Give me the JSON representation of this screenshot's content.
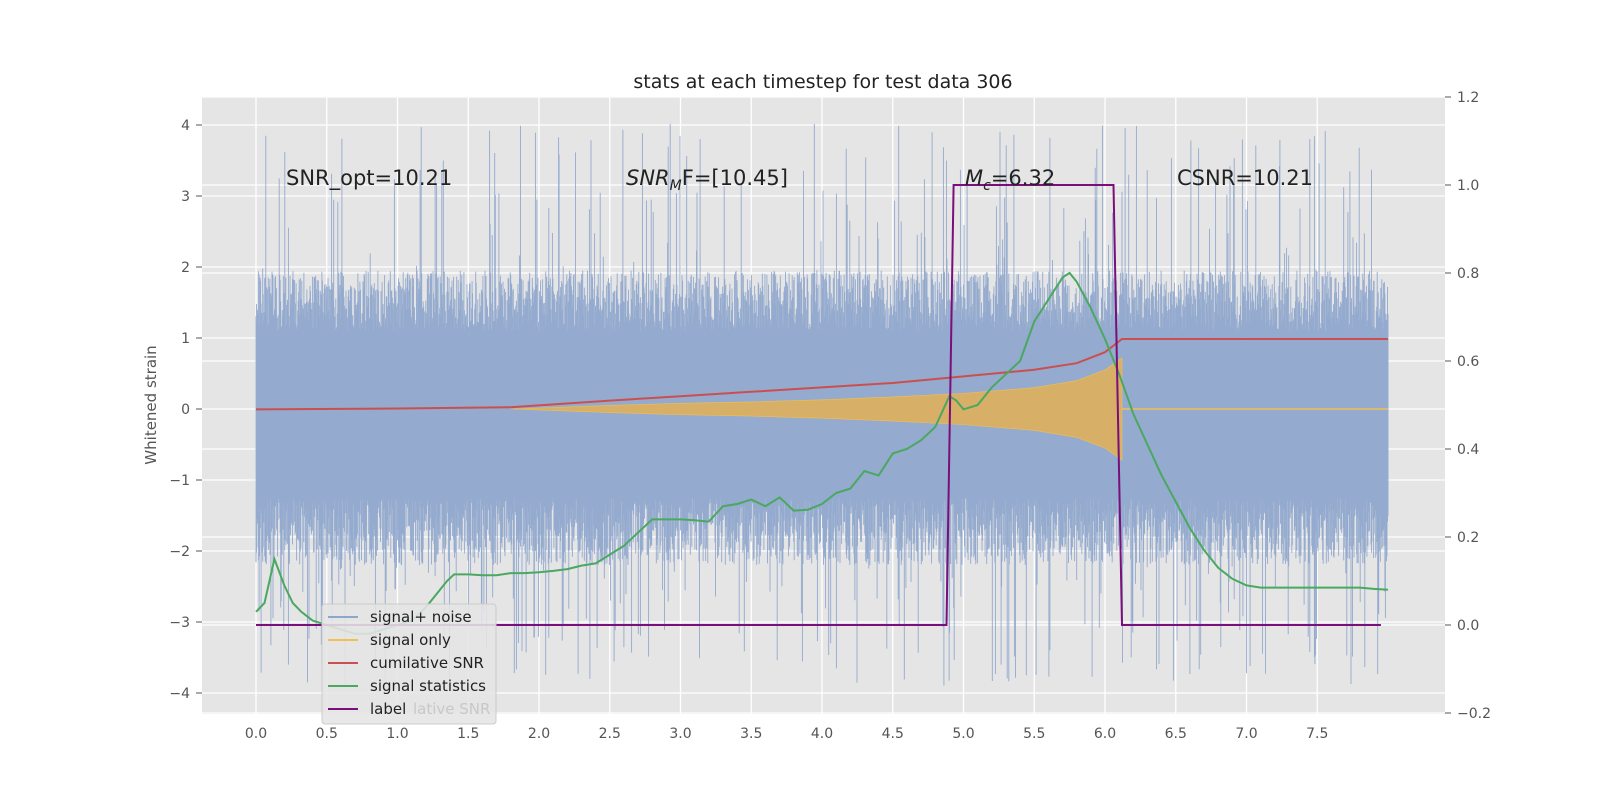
{
  "chart_data": {
    "type": "line",
    "title": "stats at each timestep for test data 306",
    "xlabel": "",
    "ylabel": "Whitened strain",
    "xlim": [
      -0.4,
      8.4
    ],
    "ylim": [
      -4.3,
      4.4
    ],
    "ylim_right": [
      -0.2,
      1.2
    ],
    "xticks": [
      "0.0",
      "0.5",
      "1.0",
      "1.5",
      "2.0",
      "2.5",
      "3.0",
      "3.5",
      "4.0",
      "4.5",
      "5.0",
      "5.5",
      "6.0",
      "6.5",
      "7.0",
      "7.5"
    ],
    "yticks": [
      "4",
      "3",
      "2",
      "1",
      "0",
      "−1",
      "−2",
      "−3",
      "−4"
    ],
    "yticks_right": [
      "1.2",
      "1.0",
      "0.8",
      "0.6",
      "0.4",
      "0.2",
      "0.0",
      "−0.2"
    ],
    "grid": true,
    "legend_position": "lower-left",
    "legend": [
      {
        "label": "signal+ noise",
        "color": "#8fa6cc"
      },
      {
        "label": "signal only",
        "color": "#f0c050"
      },
      {
        "label": "cumilative SNR",
        "color": "#c9504f"
      },
      {
        "label": "signal statistics",
        "color": "#4aa860"
      },
      {
        "label": "label",
        "color": "#7a0e7a"
      }
    ],
    "legend_ghost_text": "lative SNR",
    "annotations": [
      {
        "id": "snr-opt",
        "text": "SNR_opt=10.21",
        "x": 0.2,
        "y": 3.2
      },
      {
        "id": "snr-mf",
        "text": "SNR",
        "sub": "M",
        "suffix": "F=[10.45]",
        "x": 2.6,
        "y": 3.2
      },
      {
        "id": "mc",
        "text": "M",
        "sub": "c",
        "suffix": "=6.32",
        "x": 5.0,
        "y": 3.2
      },
      {
        "id": "csnr",
        "text": "CSNR=10.21",
        "x": 6.5,
        "y": 3.2
      }
    ],
    "series": [
      {
        "name": "signal+ noise",
        "axis": "left",
        "color": "#8fa6cc",
        "x_range": [
          0.0,
          8.0
        ],
        "envelope_upper": 1.9,
        "envelope_lower": -2.2,
        "peak_max": 4.05,
        "peak_min": -3.9
      },
      {
        "name": "signal only",
        "axis": "left",
        "color": "#f0c050",
        "x": [
          1.8,
          2.5,
          3.0,
          3.5,
          4.0,
          4.5,
          5.0,
          5.5,
          5.8,
          6.0,
          6.12
        ],
        "amplitude": [
          0.0,
          0.05,
          0.08,
          0.1,
          0.13,
          0.17,
          0.22,
          0.3,
          0.4,
          0.55,
          0.72
        ]
      },
      {
        "name": "cumilative SNR",
        "axis": "right",
        "color": "#c9504f",
        "x": [
          0.0,
          1.0,
          1.8,
          2.5,
          3.0,
          3.5,
          4.0,
          4.5,
          5.0,
          5.5,
          5.8,
          6.0,
          6.12,
          8.0
        ],
        "y": [
          0.49,
          0.492,
          0.495,
          0.51,
          0.52,
          0.53,
          0.54,
          0.55,
          0.565,
          0.58,
          0.595,
          0.62,
          0.65,
          0.65
        ]
      },
      {
        "name": "signal statistics",
        "axis": "right",
        "color": "#4aa860",
        "x": [
          0.0,
          0.06,
          0.13,
          0.2,
          0.26,
          0.32,
          0.4,
          0.5,
          0.6,
          0.7,
          0.8,
          0.9,
          1.0,
          1.1,
          1.2,
          1.3,
          1.35,
          1.4,
          1.5,
          1.6,
          1.7,
          1.8,
          1.9,
          2.0,
          2.1,
          2.2,
          2.3,
          2.4,
          2.5,
          2.6,
          2.7,
          2.8,
          2.9,
          3.0,
          3.1,
          3.2,
          3.3,
          3.4,
          3.5,
          3.6,
          3.7,
          3.8,
          3.9,
          4.0,
          4.1,
          4.2,
          4.3,
          4.4,
          4.5,
          4.6,
          4.7,
          4.8,
          4.9,
          4.95,
          5.0,
          5.1,
          5.2,
          5.3,
          5.4,
          5.5,
          5.6,
          5.7,
          5.75,
          5.8,
          5.9,
          6.0,
          6.1,
          6.2,
          6.3,
          6.4,
          6.5,
          6.6,
          6.7,
          6.8,
          6.9,
          7.0,
          7.1,
          7.2,
          7.3,
          7.4,
          7.5,
          7.6,
          7.7,
          7.8,
          7.9,
          8.0
        ],
        "y": [
          0.03,
          0.05,
          0.15,
          0.09,
          0.05,
          0.03,
          0.01,
          0.0,
          -0.01,
          -0.02,
          -0.02,
          -0.01,
          0.0,
          0.01,
          0.04,
          0.08,
          0.1,
          0.115,
          0.115,
          0.113,
          0.113,
          0.118,
          0.118,
          0.12,
          0.123,
          0.127,
          0.135,
          0.14,
          0.16,
          0.18,
          0.21,
          0.24,
          0.24,
          0.24,
          0.238,
          0.235,
          0.27,
          0.275,
          0.285,
          0.27,
          0.29,
          0.26,
          0.262,
          0.275,
          0.3,
          0.31,
          0.35,
          0.34,
          0.39,
          0.4,
          0.42,
          0.45,
          0.52,
          0.51,
          0.49,
          0.5,
          0.54,
          0.57,
          0.6,
          0.69,
          0.74,
          0.79,
          0.8,
          0.78,
          0.72,
          0.65,
          0.57,
          0.48,
          0.41,
          0.34,
          0.28,
          0.22,
          0.17,
          0.13,
          0.105,
          0.09,
          0.085,
          0.085,
          0.085,
          0.085,
          0.085,
          0.085,
          0.085,
          0.085,
          0.082,
          0.08
        ]
      },
      {
        "name": "label",
        "axis": "right",
        "color": "#7a0e7a",
        "x": [
          0.0,
          4.88,
          4.93,
          6.06,
          6.12,
          7.95
        ],
        "y": [
          0.0,
          0.0,
          1.0,
          1.0,
          0.0,
          0.0
        ]
      }
    ]
  }
}
